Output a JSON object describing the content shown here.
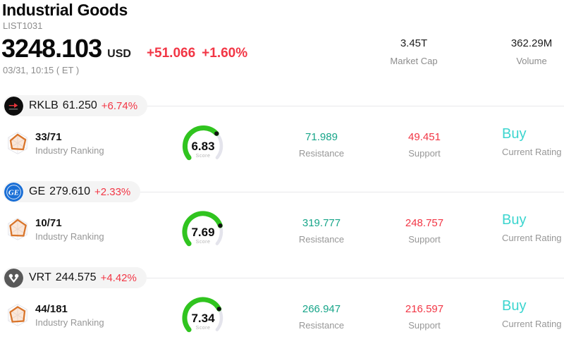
{
  "colors": {
    "negative": "#f23645",
    "positive": "#17a589",
    "rating": "#3bd5cf",
    "gauge_fill": "#30c41f",
    "gauge_track": "#e4e4ec"
  },
  "header": {
    "title": "Industrial Goods",
    "list_id": "LIST1031",
    "price": "3248.103",
    "currency": "USD",
    "change_abs": "+51.066",
    "change_pct": "+1.60%",
    "datetime": "03/31, 10:15 ( ET )",
    "stats": [
      {
        "value": "3.45T",
        "label": "Market Cap"
      },
      {
        "value": "362.29M",
        "label": "Volume"
      }
    ]
  },
  "labels": {
    "industry_ranking": "Industry Ranking",
    "score": "Score",
    "resistance": "Resistance",
    "support": "Support",
    "current_rating": "Current Rating"
  },
  "stocks": [
    {
      "symbol": "RKLB",
      "price": "61.250",
      "change_pct": "+6.74%",
      "ranking": "33/71",
      "score": 6.83,
      "resistance": "71.989",
      "support": "49.451",
      "rating": "Buy",
      "logo_text": ""
    },
    {
      "symbol": "GE",
      "price": "279.610",
      "change_pct": "+2.33%",
      "ranking": "10/71",
      "score": 7.69,
      "resistance": "319.777",
      "support": "248.757",
      "rating": "Buy",
      "logo_text": "GE"
    },
    {
      "symbol": "VRT",
      "price": "244.575",
      "change_pct": "+4.42%",
      "ranking": "44/181",
      "score": 7.34,
      "resistance": "266.947",
      "support": "216.597",
      "rating": "Buy",
      "logo_text": ""
    }
  ]
}
